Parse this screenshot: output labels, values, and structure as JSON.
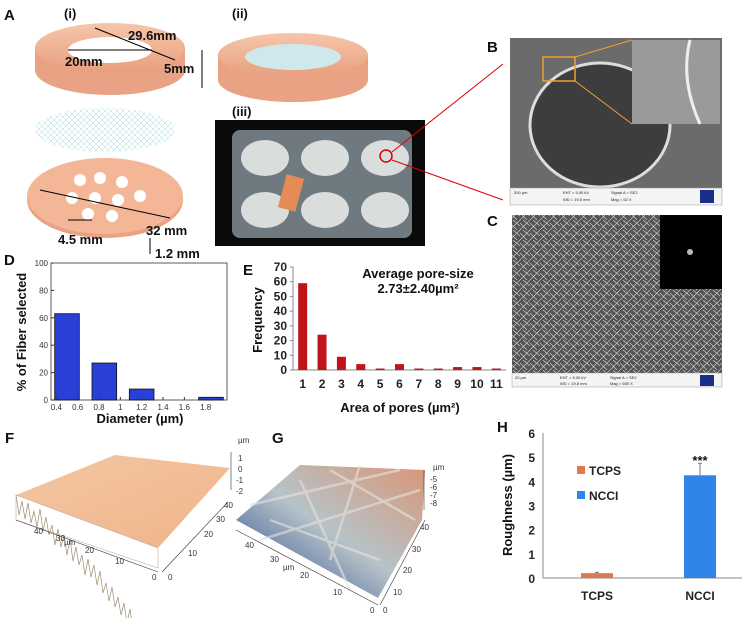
{
  "panels": {
    "A": {
      "label": "A",
      "sub_i": "(i)",
      "sub_ii": "(ii)",
      "sub_iii": "(iii)",
      "dims": {
        "outer": "29.6mm",
        "inner": "20mm",
        "height": "5mm",
        "disc": "32 mm",
        "hole": "4.5 mm",
        "thickness": "1.2 mm"
      }
    },
    "B": {
      "label": "B",
      "scale": "200 µm",
      "eht": "EHT = 5.00 kV",
      "wd": "WD = 19.5 mm",
      "signal": "Signal A = SE2",
      "mag": "Mag =   52 X",
      "brand": "ZEISS"
    },
    "C": {
      "label": "C",
      "scale": "20 µm",
      "eht": "EHT = 5.00 kV",
      "wd": "WD = 19.8 mm",
      "signal": "Signal A = SE2",
      "mag": "Mag =   500 X",
      "brand": "ZEISS"
    },
    "F": {
      "label": "F",
      "unit": "µm",
      "ticks_z": [
        "1",
        "0",
        "-1",
        "-2"
      ],
      "ticks_x": [
        "0",
        "10",
        "20",
        "30",
        "40"
      ],
      "ticks_y": [
        "0",
        "10",
        "20",
        "30",
        "40"
      ]
    },
    "G": {
      "label": "G",
      "unit": "µm",
      "ticks_z": [
        "-5",
        "-6",
        "-7",
        "-8"
      ],
      "ticks_x": [
        "0",
        "10",
        "20",
        "30",
        "40"
      ],
      "ticks_y": [
        "0",
        "10",
        "20",
        "30",
        "40"
      ]
    }
  },
  "colors": {
    "blue_bar": "#2a3fd6",
    "red_bar": "#c0141a",
    "tcps": "#e2784a",
    "ncci": "#2f86e8",
    "ring": "#f2b99a"
  },
  "chart_data": [
    {
      "panel": "D",
      "type": "bar",
      "title": "",
      "xlabel": "Diameter (µm)",
      "ylabel": "% of Fiber selected",
      "x": [
        0.5,
        0.85,
        1.2,
        1.85
      ],
      "bin_width": 0.25,
      "values": [
        63,
        27,
        8,
        2
      ],
      "xticks": [
        "0.4",
        "0.6",
        "0.8",
        "1",
        "1.2",
        "1.4",
        "1.6",
        "1.8"
      ],
      "yticks": [
        "0",
        "20",
        "40",
        "60",
        "80",
        "100"
      ],
      "xlim": [
        0.35,
        2.0
      ],
      "ylim": [
        0,
        100
      ]
    },
    {
      "panel": "E",
      "type": "bar",
      "xlabel": "Area of pores (µm²)",
      "ylabel": "Frequency",
      "categories": [
        "1",
        "2",
        "3",
        "4",
        "5",
        "6",
        "7",
        "8",
        "9",
        "10",
        "11"
      ],
      "values": [
        59,
        24,
        9,
        4,
        1,
        4,
        1,
        1,
        2,
        2,
        1
      ],
      "yticks": [
        "0",
        "10",
        "20",
        "30",
        "40",
        "50",
        "60",
        "70"
      ],
      "ylim": [
        0,
        70
      ],
      "annotation": [
        "Average pore-size",
        "2.73±2.40µm²"
      ]
    },
    {
      "panel": "H",
      "type": "bar",
      "xlabel": "",
      "ylabel": "Roughness (µm)",
      "categories": [
        "TCPS",
        "NCCI"
      ],
      "values": [
        0.2,
        4.25
      ],
      "errors": [
        0.03,
        0.5
      ],
      "legend": [
        "TCPS",
        "NCCI"
      ],
      "legend_position": "left",
      "yticks": [
        "0",
        "1",
        "2",
        "3",
        "4",
        "5",
        "6"
      ],
      "ylim": [
        0,
        6
      ],
      "significance": "***"
    }
  ]
}
